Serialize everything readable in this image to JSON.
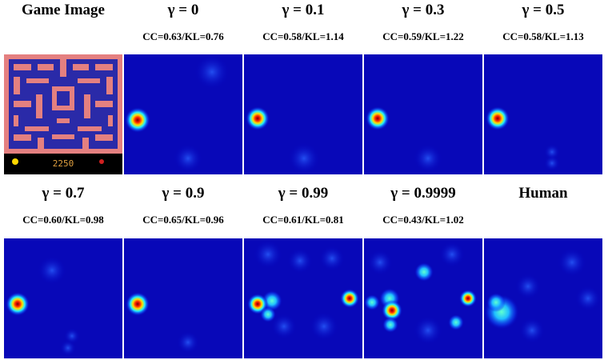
{
  "rows": [
    [
      {
        "title": "Game Image"
      },
      {
        "title": "γ = 0",
        "metrics": "CC=0.63/KL=0.76"
      },
      {
        "title": "γ = 0.1",
        "metrics": "CC=0.58/KL=1.14"
      },
      {
        "title": "γ = 0.3",
        "metrics": "CC=0.59/KL=1.22"
      },
      {
        "title": "γ = 0.5",
        "metrics": "CC=0.58/KL=1.13"
      }
    ],
    [
      {
        "title": "γ = 0.7",
        "metrics": "CC=0.60/KL=0.98"
      },
      {
        "title": "γ = 0.9",
        "metrics": "CC=0.65/KL=0.96"
      },
      {
        "title": "γ = 0.99",
        "metrics": "CC=0.61/KL=0.81"
      },
      {
        "title": "γ = 0.9999",
        "metrics": "CC=0.43/KL=1.02"
      },
      {
        "title": "Human"
      }
    ]
  ],
  "game_score": "2250"
}
